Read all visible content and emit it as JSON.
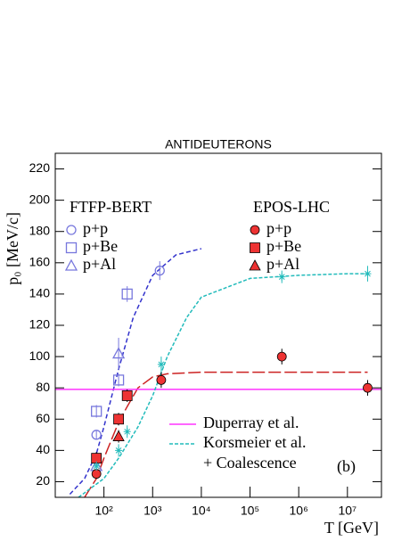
{
  "chart_data": {
    "type": "scatter",
    "title": "ANTIDEUTERONS",
    "x_label": "T  [GeV]",
    "y_label": "p₀  [MeV/c]",
    "log_x": true,
    "xlim": [
      10,
      50000000
    ],
    "ylim": [
      10,
      230
    ],
    "xticks": [
      {
        "value": 100,
        "label": "10²"
      },
      {
        "value": 1000,
        "label": "10³"
      },
      {
        "value": 10000,
        "label": "10⁴"
      },
      {
        "value": 100000,
        "label": "10⁵"
      },
      {
        "value": 1000000,
        "label": "10⁶"
      },
      {
        "value": 10000000,
        "label": "10⁷"
      }
    ],
    "yticks": [
      20,
      40,
      60,
      80,
      100,
      120,
      140,
      160,
      180,
      200,
      220
    ],
    "legend_groups": [
      "FTFP-BERT",
      "EPOS-LHC"
    ],
    "series": [
      {
        "name": "p+p",
        "group": 0,
        "marker": "circle",
        "filled": false,
        "color": "#7777dd",
        "x": [
          70,
          1400
        ],
        "values": [
          50,
          155
        ],
        "errors": [
          3,
          6
        ]
      },
      {
        "name": "p+Be",
        "group": 0,
        "marker": "square",
        "filled": false,
        "color": "#7777dd",
        "x": [
          70,
          200,
          300
        ],
        "values": [
          65,
          85,
          140
        ],
        "errors": [
          4,
          4,
          5
        ]
      },
      {
        "name": "p+Al",
        "group": 0,
        "marker": "triangle",
        "filled": false,
        "color": "#7777dd",
        "x": [
          70,
          200
        ],
        "values": [
          30,
          102
        ],
        "errors": [
          3,
          10
        ]
      },
      {
        "name": "p+p",
        "group": 1,
        "marker": "circle",
        "filled": true,
        "color": "#ee3333",
        "x": [
          70,
          1500,
          450000,
          26000000
        ],
        "values": [
          25,
          85,
          100,
          80
        ],
        "errors": [
          3,
          5,
          5,
          5
        ]
      },
      {
        "name": "p+Be",
        "group": 1,
        "marker": "square",
        "filled": true,
        "color": "#ee3333",
        "x": [
          70,
          200,
          300
        ],
        "values": [
          35,
          60,
          75
        ],
        "errors": [
          4,
          4,
          4
        ]
      },
      {
        "name": "p+Al",
        "group": 1,
        "marker": "triangle",
        "filled": true,
        "color": "#ee3333",
        "x": [
          200
        ],
        "values": [
          49
        ],
        "errors": [
          4
        ]
      },
      {
        "marker": "star",
        "filled": false,
        "color": "#22bbbb",
        "x": [
          70,
          200,
          300,
          1500,
          450000,
          26000000
        ],
        "values": [
          30,
          40,
          52,
          95,
          151,
          153
        ],
        "errors": [
          3,
          4,
          4,
          5,
          4,
          5
        ]
      }
    ],
    "lines": [
      {
        "color": "#3333cc",
        "dash": "5,3",
        "x": [
          20,
          40,
          70,
          100,
          200,
          400,
          1000,
          3000,
          10000
        ],
        "values": [
          12,
          22,
          38,
          55,
          92,
          125,
          152,
          165,
          169
        ]
      },
      {
        "color": "#cc2222",
        "dash": "14,4",
        "x": [
          40,
          70,
          100,
          200,
          300,
          500,
          1000,
          2000,
          10000,
          1000000,
          26000000
        ],
        "values": [
          10,
          22,
          35,
          58,
          68,
          80,
          87,
          89,
          90,
          90,
          90
        ]
      },
      {
        "name": "Duperray et al.",
        "color": "#ff33ff",
        "dash": "none",
        "x": [
          10,
          50000000
        ],
        "values": [
          79,
          79
        ]
      },
      {
        "name": "Korsmeier et al.",
        "color": "#22bbbb",
        "dash": "4,2",
        "x": [
          30,
          100,
          200,
          500,
          1000,
          2000,
          5000,
          10000,
          100000,
          1000000,
          10000000,
          26000000
        ],
        "values": [
          10,
          22,
          35,
          55,
          75,
          100,
          125,
          138,
          150,
          152,
          153,
          153
        ]
      }
    ],
    "annotations": [
      "+ Coalescence",
      "(b)"
    ]
  }
}
